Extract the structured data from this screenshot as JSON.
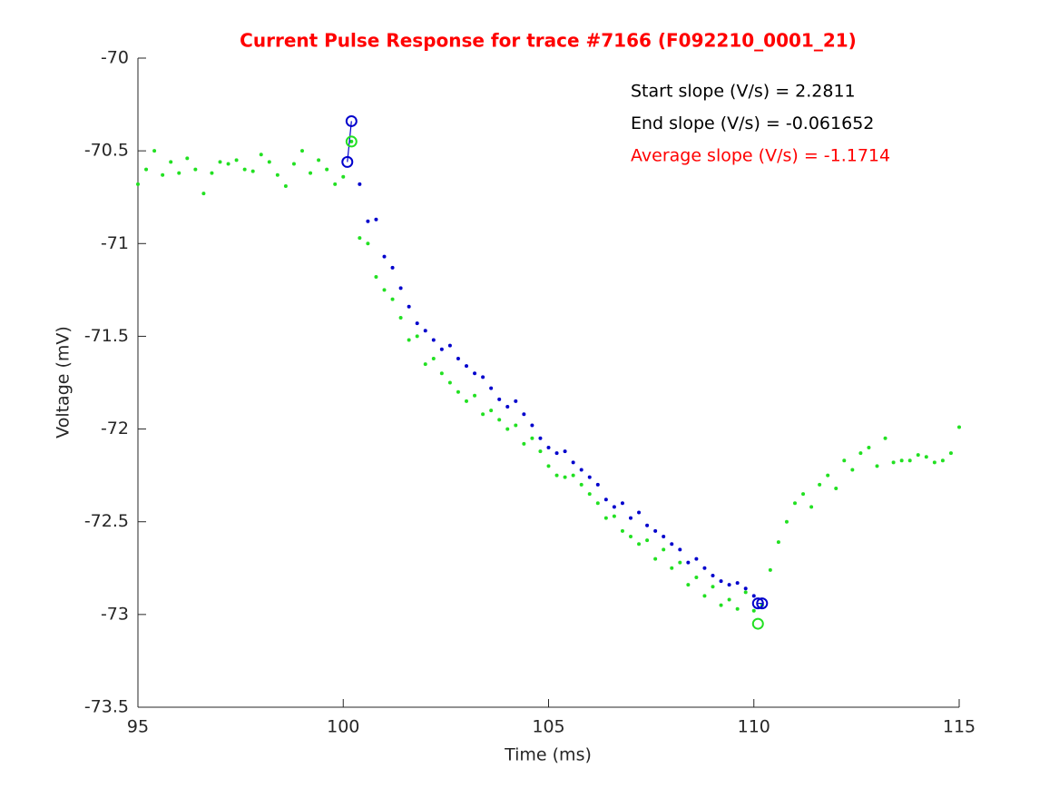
{
  "chart_data": {
    "type": "scatter",
    "title": "Current Pulse Response for trace #7166 (F092210_0001_21)",
    "xlabel": "Time (ms)",
    "ylabel": "Voltage (mV)",
    "xlim": [
      95,
      115
    ],
    "ylim": [
      -73.5,
      -70
    ],
    "xticks": [
      95,
      100,
      105,
      110,
      115
    ],
    "yticks": [
      -73.5,
      -73,
      -72.5,
      -72,
      -71.5,
      -71,
      -70.5,
      -70
    ],
    "annotations": [
      {
        "text": "Start slope (V/s) = 2.2811",
        "color": "#000000"
      },
      {
        "text": "End slope (V/s) = -0.061652",
        "color": "#000000"
      },
      {
        "text": "Average slope (V/s) = -1.1714",
        "color": "#ff0000"
      }
    ],
    "series": [
      {
        "color": "#22e022",
        "marker": "dot",
        "x": [
          95.0,
          95.2,
          95.4,
          95.6,
          95.8,
          96.0,
          96.2,
          96.4,
          96.6,
          96.8,
          97.0,
          97.2,
          97.4,
          97.6,
          97.8,
          98.0,
          98.2,
          98.4,
          98.6,
          98.8,
          99.0,
          99.2,
          99.4,
          99.6,
          99.8,
          100.0,
          100.2,
          100.4,
          100.6,
          100.8,
          101.0,
          101.2,
          101.4,
          101.6,
          101.8,
          102.0,
          102.2,
          102.4,
          102.6,
          102.8,
          103.0,
          103.2,
          103.4,
          103.6,
          103.8,
          104.0,
          104.2,
          104.4,
          104.6,
          104.8,
          105.0,
          105.2,
          105.4,
          105.6,
          105.8,
          106.0,
          106.2,
          106.4,
          106.6,
          106.8,
          107.0,
          107.2,
          107.4,
          107.6,
          107.8,
          108.0,
          108.2,
          108.4,
          108.6,
          108.8,
          109.0,
          109.2,
          109.4,
          109.6,
          109.8,
          110.0,
          110.2,
          110.4,
          110.6,
          110.8,
          111.0,
          111.2,
          111.4,
          111.6,
          111.8,
          112.0,
          112.2,
          112.4,
          112.6,
          112.8,
          113.0,
          113.2,
          113.4,
          113.6,
          113.8,
          114.0,
          114.2,
          114.4,
          114.6,
          114.8,
          115.0
        ],
        "values": [
          -70.68,
          -70.6,
          -70.5,
          -70.63,
          -70.56,
          -70.62,
          -70.54,
          -70.6,
          -70.73,
          -70.62,
          -70.56,
          -70.57,
          -70.55,
          -70.6,
          -70.61,
          -70.52,
          -70.56,
          -70.63,
          -70.69,
          -70.57,
          -70.5,
          -70.62,
          -70.55,
          -70.6,
          -70.68,
          -70.64,
          -70.45,
          -70.97,
          -71.0,
          -71.18,
          -71.25,
          -71.3,
          -71.4,
          -71.52,
          -71.5,
          -71.65,
          -71.62,
          -71.7,
          -71.75,
          -71.8,
          -71.85,
          -71.82,
          -71.92,
          -71.9,
          -71.95,
          -72.0,
          -71.98,
          -72.08,
          -72.05,
          -72.12,
          -72.2,
          -72.25,
          -72.26,
          -72.25,
          -72.3,
          -72.35,
          -72.4,
          -72.48,
          -72.47,
          -72.55,
          -72.58,
          -72.62,
          -72.6,
          -72.7,
          -72.65,
          -72.75,
          -72.72,
          -72.84,
          -72.8,
          -72.9,
          -72.85,
          -72.95,
          -72.92,
          -72.97,
          -72.88,
          -72.98,
          -72.95,
          -72.76,
          -72.61,
          -72.5,
          -72.4,
          -72.35,
          -72.42,
          -72.3,
          -72.25,
          -72.32,
          -72.17,
          -72.22,
          -72.13,
          -72.1,
          -72.2,
          -72.05,
          -72.18,
          -72.17,
          -72.17,
          -72.14,
          -72.15,
          -72.18,
          -72.17,
          -72.13,
          -71.99
        ]
      },
      {
        "color": "#0000cc",
        "marker": "dot",
        "x": [
          100.4,
          100.6,
          100.8,
          101.0,
          101.2,
          101.4,
          101.6,
          101.8,
          102.0,
          102.2,
          102.4,
          102.6,
          102.8,
          103.0,
          103.2,
          103.4,
          103.6,
          103.8,
          104.0,
          104.2,
          104.4,
          104.6,
          104.8,
          105.0,
          105.2,
          105.4,
          105.6,
          105.8,
          106.0,
          106.2,
          106.4,
          106.6,
          106.8,
          107.0,
          107.2,
          107.4,
          107.6,
          107.8,
          108.0,
          108.2,
          108.4,
          108.6,
          108.8,
          109.0,
          109.2,
          109.4,
          109.6,
          109.8,
          110.0
        ],
        "values": [
          -70.68,
          -70.88,
          -70.87,
          -71.07,
          -71.13,
          -71.24,
          -71.34,
          -71.43,
          -71.47,
          -71.52,
          -71.57,
          -71.55,
          -71.62,
          -71.66,
          -71.7,
          -71.72,
          -71.78,
          -71.84,
          -71.88,
          -71.85,
          -71.92,
          -71.98,
          -72.05,
          -72.1,
          -72.13,
          -72.12,
          -72.18,
          -72.22,
          -72.26,
          -72.3,
          -72.38,
          -72.42,
          -72.4,
          -72.48,
          -72.45,
          -72.52,
          -72.55,
          -72.58,
          -72.62,
          -72.65,
          -72.72,
          -72.7,
          -72.75,
          -72.79,
          -72.82,
          -72.84,
          -72.83,
          -72.86,
          -72.9
        ]
      },
      {
        "color": "#0000cc",
        "marker": "circle",
        "line": true,
        "x": [
          100.1,
          100.2
        ],
        "values": [
          -70.56,
          -70.34
        ]
      },
      {
        "color": "#0000cc",
        "marker": "circle",
        "line": true,
        "x": [
          110.1,
          110.2
        ],
        "values": [
          -72.94,
          -72.94
        ]
      },
      {
        "color": "#22e022",
        "marker": "circle",
        "line": false,
        "x": [
          100.2,
          110.1
        ],
        "values": [
          -70.45,
          -73.05
        ]
      }
    ]
  }
}
